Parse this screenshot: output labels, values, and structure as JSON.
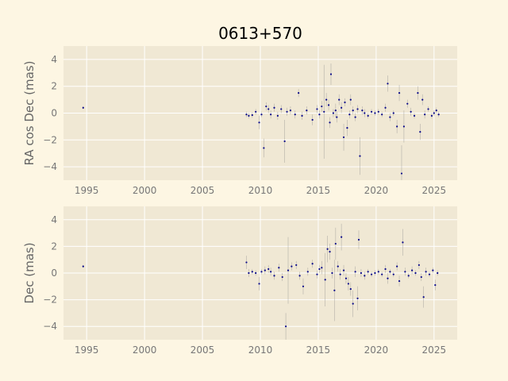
{
  "chart_data": {
    "title": "0613+570",
    "type": "scatter",
    "panels": [
      {
        "ylabel": "RA cos Dec (mas)",
        "xlim": [
          1993.0,
          2027.0
        ],
        "ylim": [
          -5.0,
          5.0
        ],
        "xticks": [
          1995,
          2000,
          2005,
          2010,
          2015,
          2020,
          2025
        ],
        "yticks": [
          -4,
          -2,
          0,
          2,
          4
        ],
        "points": [
          {
            "x": 1994.7,
            "y": 0.4,
            "err": 0.1
          },
          {
            "x": 2008.8,
            "y": -0.1,
            "err": 0.2
          },
          {
            "x": 2009.0,
            "y": -0.2,
            "err": 0.2
          },
          {
            "x": 2009.3,
            "y": -0.15,
            "err": 0.2
          },
          {
            "x": 2009.6,
            "y": 0.1,
            "err": 0.2
          },
          {
            "x": 2009.9,
            "y": -0.7,
            "err": 0.5
          },
          {
            "x": 2010.1,
            "y": -0.1,
            "err": 0.2
          },
          {
            "x": 2010.3,
            "y": -2.6,
            "err": 0.7
          },
          {
            "x": 2010.5,
            "y": 0.5,
            "err": 0.3
          },
          {
            "x": 2010.7,
            "y": 0.3,
            "err": 0.3
          },
          {
            "x": 2010.9,
            "y": -0.1,
            "err": 0.3
          },
          {
            "x": 2011.2,
            "y": 0.4,
            "err": 0.3
          },
          {
            "x": 2011.5,
            "y": -0.2,
            "err": 0.3
          },
          {
            "x": 2011.8,
            "y": 0.3,
            "err": 0.3
          },
          {
            "x": 2012.1,
            "y": -2.1,
            "err": 1.6
          },
          {
            "x": 2012.3,
            "y": 0.1,
            "err": 0.3
          },
          {
            "x": 2012.6,
            "y": 0.2,
            "err": 0.3
          },
          {
            "x": 2013.0,
            "y": -0.1,
            "err": 0.3
          },
          {
            "x": 2013.3,
            "y": 1.5,
            "err": 0.3
          },
          {
            "x": 2013.6,
            "y": -0.2,
            "err": 0.3
          },
          {
            "x": 2014.0,
            "y": 0.2,
            "err": 0.3
          },
          {
            "x": 2014.5,
            "y": -0.5,
            "err": 0.4
          },
          {
            "x": 2014.9,
            "y": 0.3,
            "err": 0.3
          },
          {
            "x": 2015.1,
            "y": -0.1,
            "err": 0.3
          },
          {
            "x": 2015.3,
            "y": 0.5,
            "err": 0.4
          },
          {
            "x": 2015.5,
            "y": 0.1,
            "err": 3.5
          },
          {
            "x": 2015.7,
            "y": 1.0,
            "err": 0.5
          },
          {
            "x": 2015.9,
            "y": 0.6,
            "err": 0.4
          },
          {
            "x": 2016.0,
            "y": -0.7,
            "err": 0.4
          },
          {
            "x": 2016.1,
            "y": 2.9,
            "err": 0.8
          },
          {
            "x": 2016.3,
            "y": 0.0,
            "err": 0.3
          },
          {
            "x": 2016.5,
            "y": 0.2,
            "err": 0.5
          },
          {
            "x": 2016.6,
            "y": -0.3,
            "err": 0.4
          },
          {
            "x": 2016.8,
            "y": 1.0,
            "err": 0.4
          },
          {
            "x": 2017.0,
            "y": 0.4,
            "err": 0.4
          },
          {
            "x": 2017.2,
            "y": -1.8,
            "err": 1.0
          },
          {
            "x": 2017.3,
            "y": 0.8,
            "err": 0.3
          },
          {
            "x": 2017.5,
            "y": -1.1,
            "err": 0.6
          },
          {
            "x": 2017.7,
            "y": -0.1,
            "err": 0.3
          },
          {
            "x": 2017.8,
            "y": 1.0,
            "err": 0.4
          },
          {
            "x": 2018.0,
            "y": 0.2,
            "err": 0.3
          },
          {
            "x": 2018.2,
            "y": -0.3,
            "err": 0.3
          },
          {
            "x": 2018.4,
            "y": 0.3,
            "err": 0.3
          },
          {
            "x": 2018.6,
            "y": -3.2,
            "err": 1.4
          },
          {
            "x": 2018.8,
            "y": 0.2,
            "err": 0.3
          },
          {
            "x": 2019.0,
            "y": 0.0,
            "err": 0.3
          },
          {
            "x": 2019.3,
            "y": -0.2,
            "err": 0.2
          },
          {
            "x": 2019.6,
            "y": 0.1,
            "err": 0.2
          },
          {
            "x": 2019.9,
            "y": 0.0,
            "err": 0.2
          },
          {
            "x": 2020.2,
            "y": 0.1,
            "err": 0.2
          },
          {
            "x": 2020.5,
            "y": -0.1,
            "err": 0.2
          },
          {
            "x": 2020.8,
            "y": 0.4,
            "err": 0.3
          },
          {
            "x": 2021.0,
            "y": 2.2,
            "err": 0.6
          },
          {
            "x": 2021.2,
            "y": -0.3,
            "err": 0.3
          },
          {
            "x": 2021.5,
            "y": 0.0,
            "err": 0.2
          },
          {
            "x": 2021.8,
            "y": -1.0,
            "err": 0.5
          },
          {
            "x": 2022.0,
            "y": 1.5,
            "err": 0.6
          },
          {
            "x": 2022.2,
            "y": -4.5,
            "err": 2.1
          },
          {
            "x": 2022.4,
            "y": -1.0,
            "err": 1.2
          },
          {
            "x": 2022.7,
            "y": 0.7,
            "err": 0.3
          },
          {
            "x": 2023.0,
            "y": 0.1,
            "err": 0.3
          },
          {
            "x": 2023.3,
            "y": -0.2,
            "err": 0.2
          },
          {
            "x": 2023.6,
            "y": 1.5,
            "err": 0.5
          },
          {
            "x": 2023.8,
            "y": -1.4,
            "err": 0.6
          },
          {
            "x": 2024.0,
            "y": 1.0,
            "err": 0.4
          },
          {
            "x": 2024.2,
            "y": -0.1,
            "err": 0.3
          },
          {
            "x": 2024.5,
            "y": 0.3,
            "err": 0.2
          },
          {
            "x": 2024.8,
            "y": -0.2,
            "err": 0.2
          },
          {
            "x": 2025.0,
            "y": 0.0,
            "err": 0.2
          },
          {
            "x": 2025.2,
            "y": 0.2,
            "err": 0.2
          },
          {
            "x": 2025.4,
            "y": -0.1,
            "err": 0.2
          }
        ]
      },
      {
        "ylabel": "Dec (mas)",
        "xlim": [
          1993.0,
          2027.0
        ],
        "ylim": [
          -5.0,
          5.0
        ],
        "xticks": [
          1995,
          2000,
          2005,
          2010,
          2015,
          2020,
          2025
        ],
        "yticks": [
          -4,
          -2,
          0,
          2,
          4
        ],
        "points": [
          {
            "x": 1994.7,
            "y": 0.5,
            "err": 0.1
          },
          {
            "x": 2008.8,
            "y": 0.8,
            "err": 0.5
          },
          {
            "x": 2009.0,
            "y": 0.0,
            "err": 0.3
          },
          {
            "x": 2009.3,
            "y": 0.1,
            "err": 0.2
          },
          {
            "x": 2009.6,
            "y": 0.0,
            "err": 0.2
          },
          {
            "x": 2009.9,
            "y": -0.8,
            "err": 0.5
          },
          {
            "x": 2010.1,
            "y": 0.1,
            "err": 0.2
          },
          {
            "x": 2010.4,
            "y": 0.2,
            "err": 0.3
          },
          {
            "x": 2010.7,
            "y": 0.3,
            "err": 0.3
          },
          {
            "x": 2010.9,
            "y": 0.1,
            "err": 0.3
          },
          {
            "x": 2011.2,
            "y": -0.2,
            "err": 0.3
          },
          {
            "x": 2011.6,
            "y": 0.4,
            "err": 0.3
          },
          {
            "x": 2011.9,
            "y": -0.3,
            "err": 0.3
          },
          {
            "x": 2012.2,
            "y": -4.0,
            "err": 1.0
          },
          {
            "x": 2012.4,
            "y": 0.2,
            "err": 2.5
          },
          {
            "x": 2012.7,
            "y": 0.5,
            "err": 0.3
          },
          {
            "x": 2013.1,
            "y": 0.6,
            "err": 0.3
          },
          {
            "x": 2013.4,
            "y": -0.2,
            "err": 0.3
          },
          {
            "x": 2013.7,
            "y": -1.0,
            "err": 0.6
          },
          {
            "x": 2014.1,
            "y": 0.1,
            "err": 0.3
          },
          {
            "x": 2014.5,
            "y": 0.7,
            "err": 0.3
          },
          {
            "x": 2014.9,
            "y": -0.1,
            "err": 0.3
          },
          {
            "x": 2015.1,
            "y": 0.3,
            "err": 0.3
          },
          {
            "x": 2015.3,
            "y": 0.4,
            "err": 0.5
          },
          {
            "x": 2015.6,
            "y": -0.5,
            "err": 2.0
          },
          {
            "x": 2015.8,
            "y": 1.8,
            "err": 1.0
          },
          {
            "x": 2016.0,
            "y": 1.6,
            "err": 0.6
          },
          {
            "x": 2016.2,
            "y": 0.0,
            "err": 0.4
          },
          {
            "x": 2016.4,
            "y": -1.3,
            "err": 2.3
          },
          {
            "x": 2016.5,
            "y": 2.2,
            "err": 1.2
          },
          {
            "x": 2016.7,
            "y": 0.5,
            "err": 0.4
          },
          {
            "x": 2016.9,
            "y": -0.1,
            "err": 0.4
          },
          {
            "x": 2017.0,
            "y": 2.7,
            "err": 1.0
          },
          {
            "x": 2017.2,
            "y": 0.2,
            "err": 0.4
          },
          {
            "x": 2017.4,
            "y": -0.4,
            "err": 0.4
          },
          {
            "x": 2017.6,
            "y": -0.8,
            "err": 0.5
          },
          {
            "x": 2017.8,
            "y": -1.2,
            "err": 0.5
          },
          {
            "x": 2018.0,
            "y": -2.3,
            "err": 1.0
          },
          {
            "x": 2018.2,
            "y": 0.1,
            "err": 0.4
          },
          {
            "x": 2018.4,
            "y": -1.9,
            "err": 0.9
          },
          {
            "x": 2018.5,
            "y": 2.5,
            "err": 0.7
          },
          {
            "x": 2018.7,
            "y": 0.0,
            "err": 0.3
          },
          {
            "x": 2019.0,
            "y": -0.2,
            "err": 0.3
          },
          {
            "x": 2019.3,
            "y": 0.1,
            "err": 0.2
          },
          {
            "x": 2019.6,
            "y": -0.1,
            "err": 0.2
          },
          {
            "x": 2019.9,
            "y": 0.0,
            "err": 0.2
          },
          {
            "x": 2020.2,
            "y": 0.1,
            "err": 0.2
          },
          {
            "x": 2020.5,
            "y": -0.1,
            "err": 0.2
          },
          {
            "x": 2020.8,
            "y": 0.3,
            "err": 0.3
          },
          {
            "x": 2021.0,
            "y": -0.4,
            "err": 0.4
          },
          {
            "x": 2021.2,
            "y": 0.1,
            "err": 0.2
          },
          {
            "x": 2021.5,
            "y": -0.1,
            "err": 0.2
          },
          {
            "x": 2021.8,
            "y": 0.5,
            "err": 0.3
          },
          {
            "x": 2022.0,
            "y": -0.6,
            "err": 0.4
          },
          {
            "x": 2022.3,
            "y": 2.3,
            "err": 1.0
          },
          {
            "x": 2022.5,
            "y": 0.1,
            "err": 0.3
          },
          {
            "x": 2022.8,
            "y": -0.2,
            "err": 0.2
          },
          {
            "x": 2023.1,
            "y": 0.2,
            "err": 0.3
          },
          {
            "x": 2023.4,
            "y": 0.0,
            "err": 0.2
          },
          {
            "x": 2023.7,
            "y": 0.6,
            "err": 0.3
          },
          {
            "x": 2023.9,
            "y": -0.3,
            "err": 0.3
          },
          {
            "x": 2024.1,
            "y": -1.8,
            "err": 0.8
          },
          {
            "x": 2024.3,
            "y": 0.1,
            "err": 0.3
          },
          {
            "x": 2024.6,
            "y": -0.1,
            "err": 0.2
          },
          {
            "x": 2024.9,
            "y": 0.2,
            "err": 0.2
          },
          {
            "x": 2025.1,
            "y": -0.9,
            "err": 0.4
          },
          {
            "x": 2025.3,
            "y": 0.0,
            "err": 0.2
          }
        ]
      }
    ]
  }
}
